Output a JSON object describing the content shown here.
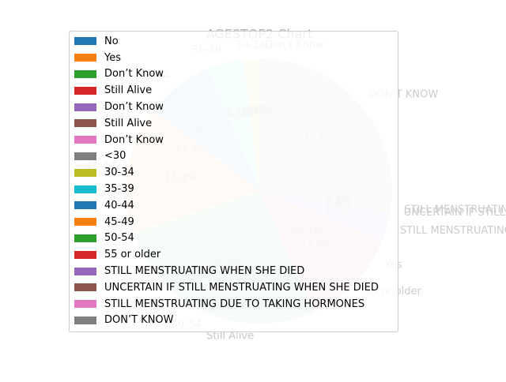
{
  "chart_data": {
    "type": "pie",
    "title": "AGESTOP2 Chart",
    "legend_position": "upper-left",
    "slices": [
      {
        "label": "No",
        "value": 0,
        "pct": "",
        "color": "#1f77b4"
      },
      {
        "label": "Yes",
        "value": 0,
        "pct": "",
        "color": "#ff7f0e"
      },
      {
        "label": "Don’t Know",
        "value": 0,
        "pct": "",
        "color": "#2ca02c"
      },
      {
        "label": "Still Alive",
        "value": 0,
        "pct": "",
        "color": "#d62728"
      },
      {
        "label": "Don’t Know",
        "value": 0,
        "pct": "",
        "color": "#9467bd"
      },
      {
        "label": "Still Alive",
        "value": 0,
        "pct": "",
        "color": "#8c564b"
      },
      {
        "label": "Don’t Know",
        "value": 0,
        "pct": "",
        "color": "#e377c2"
      },
      {
        "label": "<30",
        "value": 0.0,
        "pct": "0.0%",
        "color": "#7f7f7f"
      },
      {
        "label": "30-34",
        "value": 1.9,
        "pct": "1.9%",
        "color": "#bcbd22"
      },
      {
        "label": "35-39",
        "value": 4.5,
        "pct": "4.5%",
        "color": "#17becf"
      },
      {
        "label": "40-44",
        "value": 8.1,
        "pct": "8.1%",
        "color": "#1f77b4"
      },
      {
        "label": "45-49",
        "value": 15.4,
        "pct": "15.4%",
        "color": "#ff7f0e"
      },
      {
        "label": "50-54",
        "value": 26.5,
        "pct": "26.5%",
        "color": "#2ca02c"
      },
      {
        "label": "55 or older",
        "value": 11.9,
        "pct": "11.9%",
        "color": "#d62728"
      },
      {
        "label": "STILL MENSTRUATING WHEN SHE DIED",
        "value": 3.5,
        "pct": "3.5%",
        "color": "#9467bd"
      },
      {
        "label": "UNCERTAIN IF STILL MENSTRUATING WHEN SHE DIED",
        "value": 0.5,
        "pct": "0.5%",
        "color": "#8c564b"
      },
      {
        "label": "STILL MENSTRUATING DUE TO TAKING HORMONES",
        "value": 0.1,
        "pct": "0.1%",
        "color": "#e377c2"
      },
      {
        "label": "DON’T KNOW",
        "value": 26.8,
        "pct": "26.8%",
        "color": "#7f7f7f"
      }
    ],
    "extra_labels": [
      {
        "text": "Don’t Know",
        "role": "outer"
      },
      {
        "text": "Don’t Know",
        "role": "outer"
      },
      {
        "text": "Still Alive",
        "role": "outer"
      },
      {
        "text": "Still Alive",
        "role": "outer"
      },
      {
        "text": "0.0%",
        "role": "pct"
      },
      {
        "text": "0.0%",
        "role": "pct"
      },
      {
        "text": "33.4%",
        "role": "pct"
      },
      {
        "text": "66.1%",
        "role": "pct"
      },
      {
        "text": "Yes",
        "role": "outer"
      },
      {
        "text": "No",
        "role": "outer"
      },
      {
        "text": "0.0%",
        "role": "pct"
      }
    ]
  }
}
